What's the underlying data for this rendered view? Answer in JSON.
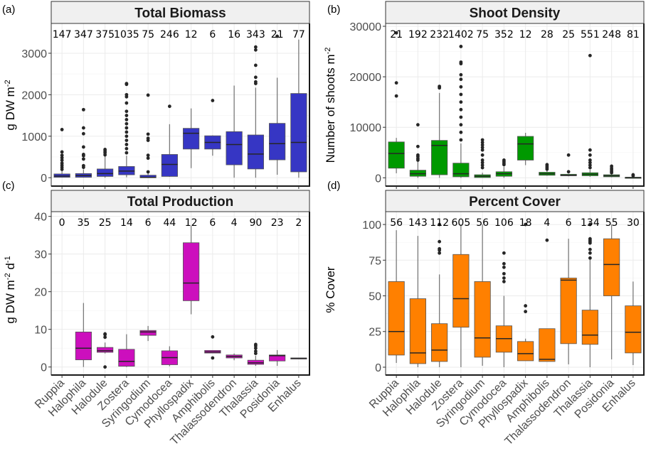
{
  "chart_data": [
    {
      "type": "box",
      "panel_label": "(a)",
      "title": "Total Biomass",
      "ylabel": "g DW m-2",
      "ylabel_parts": {
        "base": "g DW m",
        "sup": "-2",
        "tail": ""
      },
      "ylim": [
        -100,
        3650
      ],
      "yticks": [
        0,
        1000,
        2000,
        3000
      ],
      "ytick_labels": [
        "0",
        "1000",
        "2000",
        "3000"
      ],
      "fill": "#3636c4",
      "categories": [
        "Ruppia",
        "Halophila",
        "Halodule",
        "Zostera",
        "Syringodium",
        "Cymodocea",
        "Phyllospadix",
        "Amphibolis",
        "Thalassodendron",
        "Thalassia",
        "Posidonia",
        "Enhalus"
      ],
      "counts": [
        "147",
        "347",
        "375",
        "1035",
        "75",
        "246",
        "12",
        "6",
        "16",
        "343",
        "21",
        "77"
      ],
      "boxes": [
        {
          "min": 0,
          "q1": 10,
          "median": 40,
          "q3": 90,
          "max": 180,
          "outliers": [
            200,
            250,
            300,
            350,
            420,
            480,
            540,
            620,
            1160
          ]
        },
        {
          "min": 0,
          "q1": 10,
          "median": 50,
          "q3": 100,
          "max": 200,
          "outliers": [
            250,
            290,
            450,
            530,
            560,
            740,
            1060,
            1200,
            1640
          ]
        },
        {
          "min": 0,
          "q1": 30,
          "median": 100,
          "q3": 210,
          "max": 520,
          "outliers": [
            550,
            600,
            640,
            680
          ]
        },
        {
          "min": 10,
          "q1": 70,
          "median": 160,
          "q3": 270,
          "max": 530,
          "outliers": [
            600,
            700,
            800,
            900,
            1000,
            1100,
            1200,
            1300,
            1400,
            1500,
            1600,
            1800,
            1950,
            2000,
            2250,
            2270
          ]
        },
        {
          "min": 0,
          "q1": 0,
          "median": 10,
          "q3": 60,
          "max": 120,
          "outliers": [
            140,
            470,
            540,
            900,
            950,
            1050,
            1990
          ]
        },
        {
          "min": 20,
          "q1": 30,
          "median": 320,
          "q3": 560,
          "max": 1290,
          "outliers": [
            1720
          ]
        },
        {
          "min": 230,
          "q1": 690,
          "median": 1070,
          "q3": 1190,
          "max": 1670,
          "outliers": []
        },
        {
          "min": 530,
          "q1": 690,
          "median": 850,
          "q3": 1010,
          "max": 1020,
          "outliers": [
            1860
          ]
        },
        {
          "min": 0,
          "q1": 310,
          "median": 800,
          "q3": 1110,
          "max": 2220,
          "outliers": []
        },
        {
          "min": 0,
          "q1": 210,
          "median": 570,
          "q3": 1030,
          "max": 2170,
          "outliers": [
            2270,
            2310,
            2420,
            2710,
            3080,
            3150
          ]
        },
        {
          "min": 70,
          "q1": 430,
          "median": 820,
          "q3": 1310,
          "max": 2410,
          "outliers": [
            3410
          ]
        },
        {
          "min": 0,
          "q1": 140,
          "median": 850,
          "q3": 2030,
          "max": 3330,
          "outliers": []
        }
      ]
    },
    {
      "type": "box",
      "panel_label": "(b)",
      "title": "Shoot Density",
      "ylabel": "Number of shoots m-2",
      "ylabel_parts": {
        "base": "Number of shoots m",
        "sup": "-2",
        "tail": ""
      },
      "ylim": [
        -800,
        30000
      ],
      "yticks": [
        0,
        10000,
        20000,
        30000
      ],
      "ytick_labels": [
        "0",
        "10000",
        "20000",
        "30000"
      ],
      "fill": "#009900",
      "categories": [
        "Ruppia",
        "Halophila",
        "Halodule",
        "Zostera",
        "Syringodium",
        "Cymodocea",
        "Phyllospadix",
        "Amphibolis",
        "Thalassodendron",
        "Thalassia",
        "Posidonia",
        "Enhalus"
      ],
      "counts": [
        "21",
        "192",
        "232",
        "1402",
        "75",
        "352",
        "12",
        "28",
        "25",
        "551",
        "248",
        "81"
      ],
      "boxes": [
        {
          "min": 900,
          "q1": 1900,
          "median": 4800,
          "q3": 7100,
          "max": 7900,
          "outliers": [
            16200,
            18800,
            28700
          ]
        },
        {
          "min": 0,
          "q1": 300,
          "median": 800,
          "q3": 1500,
          "max": 3200,
          "outliers": [
            3500,
            3800,
            4200,
            4500,
            6200,
            10500
          ]
        },
        {
          "min": 0,
          "q1": 600,
          "median": 6400,
          "q3": 7400,
          "max": 16800,
          "outliers": [
            17800,
            18100
          ]
        },
        {
          "min": 0,
          "q1": 200,
          "median": 800,
          "q3": 2900,
          "max": 6800,
          "outliers": [
            7500,
            9000,
            10500,
            12000,
            13500,
            15000,
            16500,
            18000,
            19500,
            20400,
            22600,
            22900,
            26000
          ]
        },
        {
          "min": 0,
          "q1": 50,
          "median": 300,
          "q3": 600,
          "max": 1000,
          "outliers": [
            2000,
            2500,
            3000,
            3500,
            4500,
            5500,
            6000,
            6500,
            7000,
            7500
          ]
        },
        {
          "min": 0,
          "q1": 300,
          "median": 800,
          "q3": 1200,
          "max": 2200,
          "outliers": [
            2600,
            2900,
            3200,
            3500
          ]
        },
        {
          "min": 2500,
          "q1": 3500,
          "median": 6700,
          "q3": 8200,
          "max": 8900,
          "outliers": []
        },
        {
          "min": 400,
          "q1": 500,
          "median": 800,
          "q3": 1100,
          "max": 1500,
          "outliers": [
            1700,
            2000,
            2300,
            2600
          ]
        },
        {
          "min": 300,
          "q1": 400,
          "median": 500,
          "q3": 700,
          "max": 800,
          "outliers": [
            1200,
            4500
          ]
        },
        {
          "min": 200,
          "q1": 400,
          "median": 700,
          "q3": 1000,
          "max": 1600,
          "outliers": [
            2000,
            2500,
            3000,
            3500,
            4500,
            5500,
            24200
          ]
        },
        {
          "min": 100,
          "q1": 200,
          "median": 400,
          "q3": 600,
          "max": 800,
          "outliers": [
            1000,
            1300,
            1600,
            1900,
            2300
          ]
        },
        {
          "min": 0,
          "q1": 0,
          "median": 50,
          "q3": 100,
          "max": 200,
          "outliers": [
            400,
            600
          ]
        }
      ]
    },
    {
      "type": "box",
      "panel_label": "(c)",
      "title": "Total Production",
      "ylabel": "g DW m-2 d-1",
      "ylabel_parts": {
        "base": "g DW m",
        "sup": "-2",
        "tail": " d",
        "sup2": "-1"
      },
      "ylim": [
        -1,
        40.5
      ],
      "yticks": [
        0,
        10,
        20,
        30,
        40
      ],
      "ytick_labels": [
        "0",
        "10",
        "20",
        "30",
        "40"
      ],
      "fill": "#cc0fbd",
      "categories": [
        "Ruppia",
        "Halophila",
        "Halodule",
        "Zostera",
        "Syringodium",
        "Cymodocea",
        "Phyllospadix",
        "Amphibolis",
        "Thalassodendron",
        "Thalassia",
        "Posidonia",
        "Enhalus"
      ],
      "counts": [
        "0",
        "35",
        "25",
        "14",
        "6",
        "44",
        "12",
        "6",
        "4",
        "90",
        "23",
        "2"
      ],
      "boxes": [
        null,
        {
          "min": 0,
          "q1": 1.9,
          "median": 5.0,
          "q3": 9.3,
          "max": 17.0,
          "outliers": []
        },
        {
          "min": 3.6,
          "q1": 3.9,
          "median": 4.3,
          "q3": 5.2,
          "max": 6.5,
          "outliers": [
            0,
            7.9,
            8.6,
            8.8
          ]
        },
        {
          "min": 0,
          "q1": 0.2,
          "median": 1.5,
          "q3": 4.7,
          "max": 8.7,
          "outliers": []
        },
        {
          "min": 6.9,
          "q1": 8.4,
          "median": 9.3,
          "q3": 9.7,
          "max": 10.9,
          "outliers": []
        },
        {
          "min": 0.2,
          "q1": 0.6,
          "median": 2.5,
          "q3": 4.3,
          "max": 5.5,
          "outliers": []
        },
        {
          "min": 14.0,
          "q1": 17.6,
          "median": 22.3,
          "q3": 33.0,
          "max": 37.5,
          "outliers": []
        },
        {
          "min": 3.7,
          "q1": 3.7,
          "median": 4.0,
          "q3": 4.4,
          "max": 4.4,
          "outliers": [
            2.4,
            8.0
          ]
        },
        {
          "min": 1.8,
          "q1": 2.4,
          "median": 2.8,
          "q3": 3.2,
          "max": 3.6,
          "outliers": []
        },
        {
          "min": 0.3,
          "q1": 0.7,
          "median": 1.1,
          "q3": 1.8,
          "max": 3.0,
          "outliers": [
            3.6,
            4.2,
            5.0,
            5.6,
            6.0
          ]
        },
        {
          "min": 0.3,
          "q1": 1.6,
          "median": 3.0,
          "q3": 3.2,
          "max": 4.5,
          "outliers": []
        },
        {
          "min": 2.2,
          "q1": 2.2,
          "median": 2.3,
          "q3": 2.4,
          "max": 2.4,
          "outliers": []
        }
      ]
    },
    {
      "type": "box",
      "panel_label": "(d)",
      "title": "Percent Cover",
      "ylabel": "% Cover",
      "ylabel_parts": {
        "base": "% Cover",
        "sup": "",
        "tail": ""
      },
      "ylim": [
        -2.5,
        107
      ],
      "yticks": [
        0,
        25,
        50,
        75,
        100
      ],
      "ytick_labels": [
        "0",
        "25",
        "50",
        "75",
        "100"
      ],
      "fill": "#ff8000",
      "categories": [
        "Ruppia",
        "Halophila",
        "Halodule",
        "Zostera",
        "Syringodium",
        "Cymodocea",
        "Phyllospadix",
        "Amphibolis",
        "Thalassodendron",
        "Thalassia",
        "Posidonia",
        "Enhalus"
      ],
      "counts": [
        "56",
        "143",
        "112",
        "605",
        "56",
        "106",
        "18",
        "4",
        "6",
        "134",
        "55",
        "30"
      ],
      "boxes": [
        {
          "min": 3,
          "q1": 8.5,
          "median": 25,
          "q3": 60,
          "max": 96,
          "outliers": []
        },
        {
          "min": 0,
          "q1": 2.5,
          "median": 10,
          "q3": 48,
          "max": 92,
          "outliers": []
        },
        {
          "min": 0,
          "q1": 4,
          "median": 12,
          "q3": 30.5,
          "max": 65,
          "outliers": [
            80,
            82,
            83,
            88,
            100
          ]
        },
        {
          "min": 0,
          "q1": 28,
          "median": 48,
          "q3": 79,
          "max": 100,
          "outliers": []
        },
        {
          "min": 1,
          "q1": 7,
          "median": 20.5,
          "q3": 60,
          "max": 100,
          "outliers": []
        },
        {
          "min": 0,
          "q1": 10.5,
          "median": 20,
          "q3": 29,
          "max": 50,
          "outliers": [
            60,
            62.5,
            65.5,
            70,
            72.5,
            80
          ]
        },
        {
          "min": 4.5,
          "q1": 4.5,
          "median": 9.5,
          "q3": 18,
          "max": 20,
          "outliers": [
            39,
            43,
            100
          ]
        },
        {
          "min": 4,
          "q1": 4,
          "median": 5.5,
          "q3": 27,
          "max": 27,
          "outliers": [
            89
          ]
        },
        {
          "min": 2,
          "q1": 16.5,
          "median": 61,
          "q3": 62.5,
          "max": 90,
          "outliers": []
        },
        {
          "min": 0,
          "q1": 16,
          "median": 22.5,
          "q3": 40,
          "max": 76,
          "outliers": [
            76.5,
            80,
            82.5,
            87,
            88,
            89,
            90,
            100
          ]
        },
        {
          "min": 5.5,
          "q1": 50,
          "median": 72,
          "q3": 90,
          "max": 100,
          "outliers": []
        },
        {
          "min": 1.5,
          "q1": 10,
          "median": 24.5,
          "q3": 43,
          "max": 60,
          "outliers": []
        }
      ]
    }
  ]
}
